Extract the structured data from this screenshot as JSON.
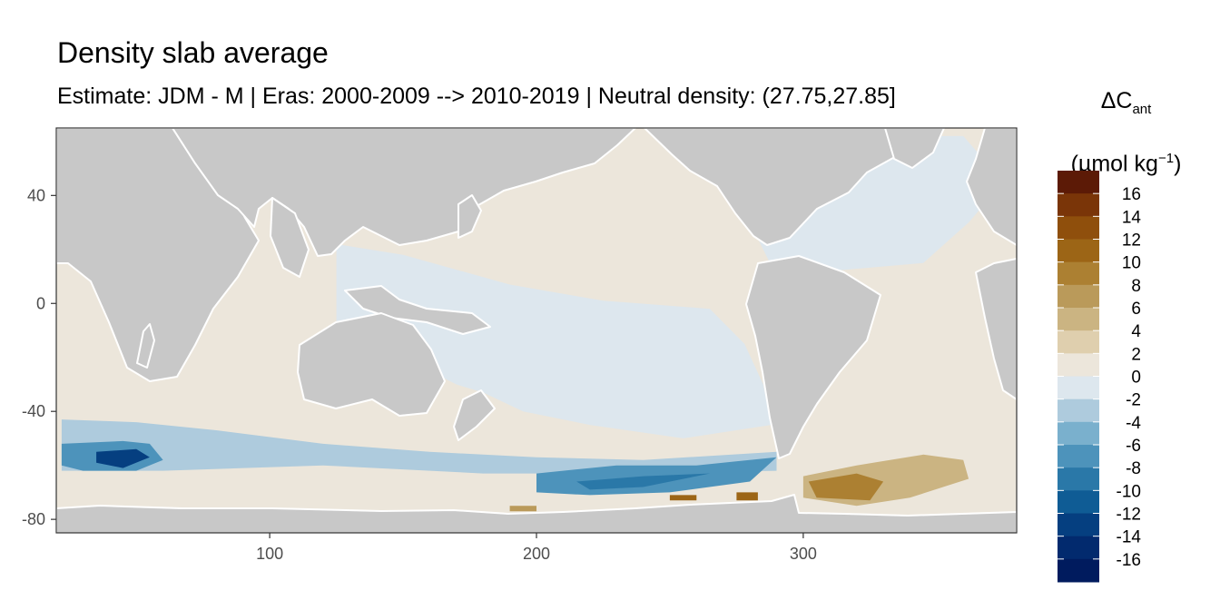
{
  "chart_data": {
    "type": "heatmap",
    "title": "Density slab average",
    "subtitle": "Estimate: JDM - M | Eras: 2000-2009 --> 2010-2019 | Neutral density: (27.75,27.85]",
    "xlabel": "",
    "ylabel": "",
    "xlim": [
      20,
      380
    ],
    "ylim": [
      -85,
      65
    ],
    "x_ticks": [
      100,
      200,
      300
    ],
    "y_ticks": [
      40,
      0,
      -40,
      -80
    ],
    "grid": false,
    "legend": {
      "title_main": "ΔC",
      "title_sub": "ant",
      "unit_main": "(µmol kg",
      "unit_sup": "−1",
      "unit_close": ")",
      "position": "right",
      "labels": [
        "16",
        "14",
        "12",
        "10",
        "8",
        "6",
        "4",
        "2",
        "0",
        "-2",
        "-4",
        "-6",
        "-8",
        "-10",
        "-12",
        "-14",
        "-16"
      ],
      "colors": [
        "#5c1a06",
        "#7a3508",
        "#8f4f0c",
        "#9c6516",
        "#ac8032",
        "#ba9a5a",
        "#cbb482",
        "#dfcfae",
        "#ece6db",
        "#dde7ee",
        "#aecbdd",
        "#7ab0cd",
        "#4d93bb",
        "#2a78a8",
        "#0f5c95",
        "#053f80",
        "#022a6e",
        "#001b5e"
      ]
    },
    "land_color": "#c8c8c8",
    "no_data_color": "#ffffff",
    "regions": [
      {
        "name": "north pacific",
        "level": 0.5,
        "points": [
          [
            125,
            40
          ],
          [
            160,
            60
          ],
          [
            210,
            62
          ],
          [
            235,
            58
          ],
          [
            240,
            45
          ],
          [
            250,
            25
          ],
          [
            278,
            8
          ],
          [
            270,
            0
          ],
          [
            230,
            2
          ],
          [
            190,
            8
          ],
          [
            150,
            20
          ],
          [
            130,
            25
          ]
        ]
      },
      {
        "name": "equatorial pacific",
        "level": -0.5,
        "points": [
          [
            125,
            22
          ],
          [
            150,
            18
          ],
          [
            190,
            7
          ],
          [
            225,
            1
          ],
          [
            265,
            -2
          ],
          [
            278,
            -15
          ],
          [
            285,
            -30
          ],
          [
            288,
            -45
          ],
          [
            255,
            -50
          ],
          [
            220,
            -45
          ],
          [
            195,
            -40
          ],
          [
            180,
            -33
          ],
          [
            170,
            -30
          ],
          [
            150,
            -20
          ],
          [
            125,
            -12
          ]
        ]
      },
      {
        "name": "north atlantic",
        "level": -0.5,
        "points": [
          [
            280,
            30
          ],
          [
            290,
            45
          ],
          [
            310,
            55
          ],
          [
            335,
            62
          ],
          [
            360,
            62
          ],
          [
            375,
            45
          ],
          [
            362,
            30
          ],
          [
            345,
            15
          ],
          [
            310,
            12
          ],
          [
            290,
            10
          ]
        ]
      },
      {
        "name": "indian ocean",
        "level": 0.5,
        "points": [
          [
            22,
            25
          ],
          [
            55,
            25
          ],
          [
            75,
            22
          ],
          [
            80,
            10
          ],
          [
            100,
            5
          ],
          [
            115,
            -15
          ],
          [
            115,
            -35
          ],
          [
            105,
            -40
          ],
          [
            70,
            -42
          ],
          [
            40,
            -40
          ],
          [
            22,
            -38
          ]
        ]
      },
      {
        "name": "south atlantic",
        "level": 0.5,
        "points": [
          [
            310,
            -5
          ],
          [
            335,
            5
          ],
          [
            360,
            5
          ],
          [
            378,
            -5
          ],
          [
            378,
            -40
          ],
          [
            360,
            -50
          ],
          [
            330,
            -50
          ],
          [
            300,
            -52
          ],
          [
            300,
            -30
          ],
          [
            315,
            -15
          ]
        ]
      },
      {
        "name": "southern band",
        "level": 0.5,
        "points": [
          [
            22,
            -38
          ],
          [
            115,
            -38
          ],
          [
            140,
            -42
          ],
          [
            190,
            -42
          ],
          [
            230,
            -48
          ],
          [
            290,
            -55
          ],
          [
            378,
            -50
          ],
          [
            378,
            -62
          ],
          [
            290,
            -63
          ],
          [
            240,
            -62
          ],
          [
            190,
            -62
          ],
          [
            120,
            -63
          ],
          [
            60,
            -62
          ],
          [
            22,
            -60
          ]
        ]
      },
      {
        "name": "southern indian belt",
        "level": -2.5,
        "points": [
          [
            22,
            -43
          ],
          [
            50,
            -44
          ],
          [
            80,
            -47
          ],
          [
            120,
            -52
          ],
          [
            160,
            -55
          ],
          [
            200,
            -57
          ],
          [
            240,
            -58
          ],
          [
            290,
            -55
          ],
          [
            290,
            -62
          ],
          [
            240,
            -63
          ],
          [
            180,
            -63
          ],
          [
            120,
            -60
          ],
          [
            60,
            -62
          ],
          [
            22,
            -62
          ]
        ]
      },
      {
        "name": "weddell core",
        "level": -6.5,
        "points": [
          [
            22,
            -52
          ],
          [
            45,
            -51
          ],
          [
            55,
            -52
          ],
          [
            60,
            -58
          ],
          [
            50,
            -62
          ],
          [
            30,
            -62
          ],
          [
            22,
            -60
          ]
        ]
      },
      {
        "name": "weddell deep core",
        "level": -12.5,
        "points": [
          [
            35,
            -55
          ],
          [
            50,
            -54
          ],
          [
            55,
            -57
          ],
          [
            45,
            -61
          ],
          [
            35,
            -59
          ]
        ]
      },
      {
        "name": "ross belt",
        "level": -6.5,
        "points": [
          [
            200,
            -63
          ],
          [
            230,
            -60
          ],
          [
            260,
            -60
          ],
          [
            290,
            -57
          ],
          [
            280,
            -66
          ],
          [
            250,
            -70
          ],
          [
            220,
            -71
          ],
          [
            200,
            -70
          ]
        ]
      },
      {
        "name": "ross core",
        "level": -8.5,
        "points": [
          [
            215,
            -66
          ],
          [
            240,
            -64
          ],
          [
            265,
            -63
          ],
          [
            240,
            -68
          ],
          [
            220,
            -69
          ]
        ]
      },
      {
        "name": "weddell warm patch",
        "level": 5.5,
        "points": [
          [
            300,
            -64
          ],
          [
            320,
            -60
          ],
          [
            345,
            -56
          ],
          [
            360,
            -58
          ],
          [
            362,
            -65
          ],
          [
            340,
            -72
          ],
          [
            320,
            -75
          ],
          [
            300,
            -72
          ]
        ]
      },
      {
        "name": "weddell warm core",
        "level": 9,
        "points": [
          [
            302,
            -66
          ],
          [
            320,
            -63
          ],
          [
            330,
            -66
          ],
          [
            325,
            -73
          ],
          [
            305,
            -72
          ]
        ]
      },
      {
        "name": "antarctic margin warm",
        "level": 12,
        "points": [
          [
            250,
            -71
          ],
          [
            260,
            -71
          ],
          [
            260,
            -73
          ],
          [
            250,
            -73
          ]
        ]
      },
      {
        "name": "antarctic margin warm 2",
        "level": 12,
        "points": [
          [
            275,
            -70
          ],
          [
            283,
            -70
          ],
          [
            283,
            -73
          ],
          [
            275,
            -73
          ]
        ]
      },
      {
        "name": "antarctic margin warm 3",
        "level": 8,
        "points": [
          [
            190,
            -75
          ],
          [
            200,
            -75
          ],
          [
            200,
            -77
          ],
          [
            190,
            -77
          ]
        ]
      }
    ]
  }
}
